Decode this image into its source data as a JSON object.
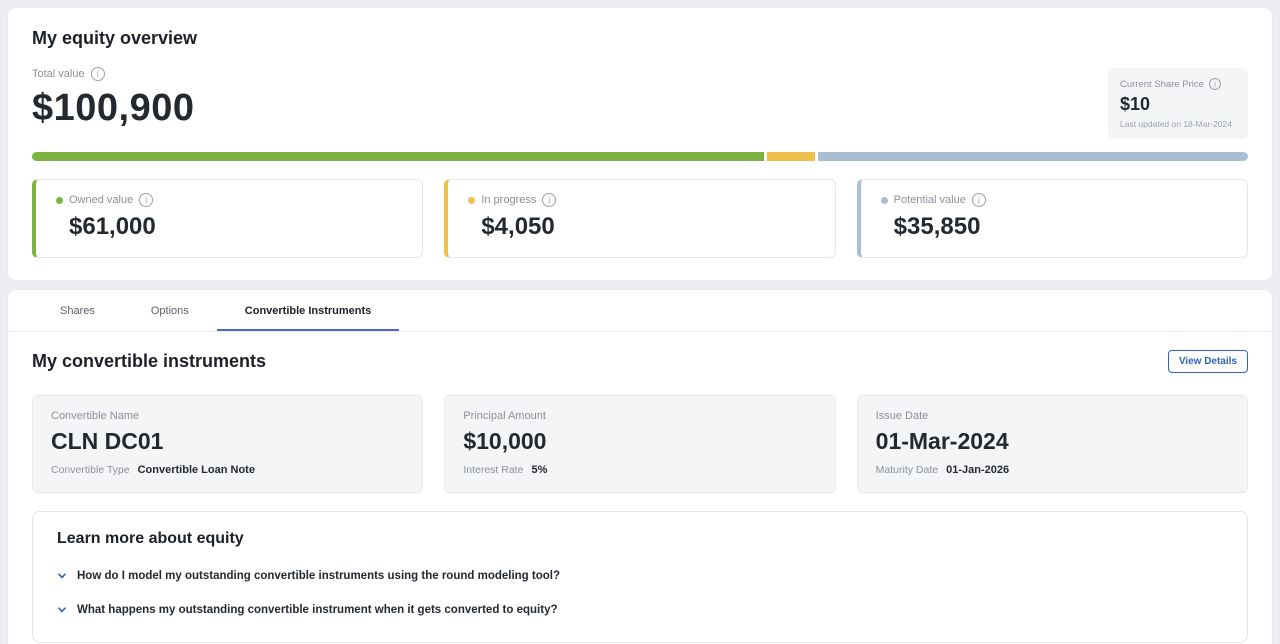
{
  "equity_overview": {
    "title": "My equity overview",
    "total_value_label": "Total value",
    "total_value": "$100,900",
    "share_price": {
      "label": "Current Share Price",
      "value": "$10",
      "updated": "Last updated on 18-Mar-2024"
    },
    "progress": {
      "segments": [
        {
          "name": "owned",
          "pct": 60.5,
          "color": "#7cb342"
        },
        {
          "name": "in-progress",
          "pct": 4.0,
          "color": "#efc14b"
        },
        {
          "name": "potential",
          "pct": 35.5,
          "color": "#a9bdd3"
        }
      ]
    },
    "cards": [
      {
        "label": "Owned value",
        "value": "$61,000",
        "color": "#7cb342"
      },
      {
        "label": "In progress",
        "value": "$4,050",
        "color": "#efc14b"
      },
      {
        "label": "Potential value",
        "value": "$35,850",
        "color": "#a9bdd3"
      }
    ]
  },
  "instruments": {
    "tabs": [
      {
        "label": "Shares",
        "active": false
      },
      {
        "label": "Options",
        "active": false
      },
      {
        "label": "Convertible Instruments",
        "active": true
      }
    ],
    "heading": "My convertible instruments",
    "view_details_label": "View Details",
    "cards": [
      {
        "label": "Convertible Name",
        "value": "CLN DC01",
        "sub_label": "Convertible Type",
        "sub_value": "Convertible Loan Note"
      },
      {
        "label": "Principal Amount",
        "value": "$10,000",
        "sub_label": "Interest Rate",
        "sub_value": "5%"
      },
      {
        "label": "Issue Date",
        "value": "01-Mar-2024",
        "sub_label": "Maturity Date",
        "sub_value": "01-Jan-2026"
      }
    ],
    "learn_more": {
      "heading": "Learn more about equity",
      "items": [
        "How do I model my outstanding convertible instruments using the round modeling tool?",
        "What happens my outstanding convertible instrument when it gets converted to equity?"
      ]
    },
    "accent_color": "#2d66b8"
  }
}
